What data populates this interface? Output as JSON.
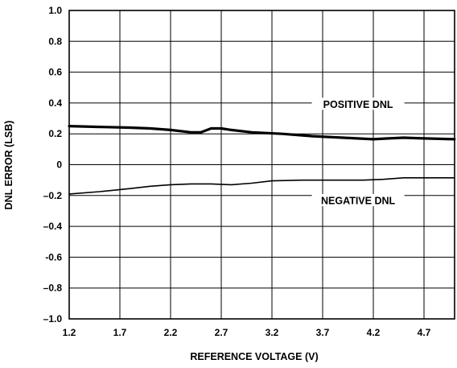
{
  "chart_data": {
    "type": "line",
    "title": "",
    "xlabel": "REFERENCE VOLTAGE (V)",
    "ylabel": "DNL ERROR (LSB)",
    "xlim": [
      1.2,
      5.0
    ],
    "ylim": [
      -1.0,
      1.0
    ],
    "grid": true,
    "legend": "none",
    "x_ticks": [
      1.2,
      1.7,
      2.2,
      2.7,
      3.2,
      3.7,
      4.2,
      4.7
    ],
    "x_tick_labels": [
      "1.2",
      "1.7",
      "2.2",
      "2.7",
      "3.2",
      "3.7",
      "4.2",
      "4.7"
    ],
    "y_ticks": [
      1.0,
      0.8,
      0.6,
      0.4,
      0.2,
      0.0,
      -0.2,
      -0.4,
      -0.6,
      -0.8,
      -1.0
    ],
    "y_tick_labels": [
      "1.0",
      "0.8",
      "0.6",
      "0.4",
      "0.2",
      "0",
      "–0.2",
      "–0.4",
      "-0.6",
      "–0.8",
      "–1.0"
    ],
    "series": [
      {
        "name": "POSITIVE DNL",
        "color": "#000000",
        "x": [
          1.2,
          1.5,
          1.8,
          2.0,
          2.2,
          2.4,
          2.5,
          2.6,
          2.7,
          2.8,
          3.0,
          3.3,
          3.6,
          3.9,
          4.2,
          4.35,
          4.5,
          4.7,
          5.0
        ],
        "y": [
          0.25,
          0.245,
          0.24,
          0.235,
          0.225,
          0.21,
          0.21,
          0.235,
          0.235,
          0.225,
          0.21,
          0.2,
          0.185,
          0.175,
          0.165,
          0.17,
          0.175,
          0.17,
          0.165
        ]
      },
      {
        "name": "NEGATIVE DNL",
        "color": "#000000",
        "x": [
          1.2,
          1.5,
          1.8,
          2.0,
          2.2,
          2.4,
          2.6,
          2.8,
          3.0,
          3.2,
          3.5,
          3.8,
          4.1,
          4.3,
          4.5,
          4.7,
          5.0
        ],
        "y": [
          -0.19,
          -0.175,
          -0.155,
          -0.14,
          -0.13,
          -0.125,
          -0.125,
          -0.13,
          -0.12,
          -0.105,
          -0.1,
          -0.1,
          -0.1,
          -0.095,
          -0.085,
          -0.085,
          -0.085
        ]
      }
    ],
    "annotations": [
      {
        "text": "POSITIVE DNL",
        "x": 4.05,
        "y": 0.39
      },
      {
        "text": "NEGATIVE DNL",
        "x": 4.05,
        "y": -0.235
      }
    ]
  }
}
